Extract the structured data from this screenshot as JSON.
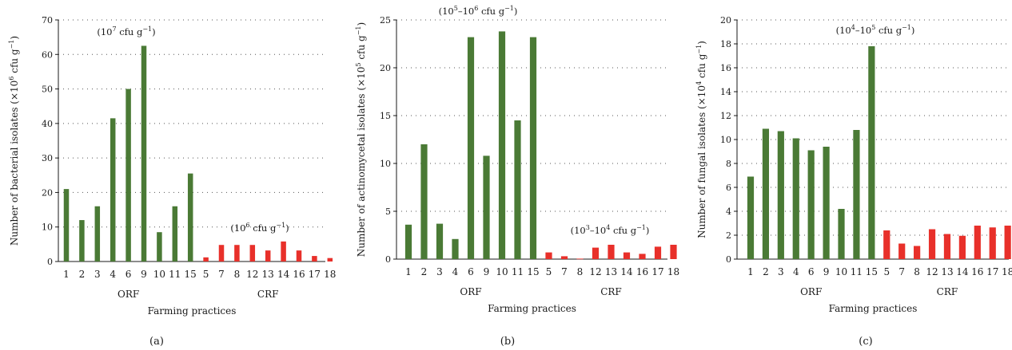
{
  "colors": {
    "orf": "#4a7a35",
    "crf": "#e8302a",
    "grid": "#555555",
    "axis": "#1a1a1a"
  },
  "chart_data": [
    {
      "type": "bar",
      "panel_label": "(a)",
      "xlabel": "Farming practices",
      "ylabel": "Number of bacterial isolates (×10⁶ cfu g⁻¹)",
      "ylabel_parts": {
        "pre": "Number of bacterial isolates (×10",
        "sup1": "6",
        "mid": " cfu g",
        "sup2": "−1",
        "post": ")"
      },
      "ylim": [
        0,
        70
      ],
      "yticks": [
        0,
        10,
        20,
        30,
        40,
        50,
        60,
        70
      ],
      "grid": "horizontal dotted",
      "groups": [
        {
          "name": "ORF",
          "color_key": "orf",
          "categories": [
            "1",
            "2",
            "3",
            "4",
            "6",
            "9",
            "10",
            "11",
            "15"
          ],
          "values": [
            21,
            12,
            16,
            41.5,
            50,
            62.5,
            8.5,
            16,
            25.5
          ]
        },
        {
          "name": "CRF",
          "color_key": "crf",
          "categories": [
            "5",
            "7",
            "8",
            "12",
            "13",
            "14",
            "16",
            "17",
            "18"
          ],
          "values": [
            1.2,
            4.8,
            4.8,
            4.8,
            3.2,
            5.8,
            3.2,
            1.6,
            1.0
          ]
        }
      ],
      "annotations": [
        {
          "group": "ORF",
          "pre": "(10",
          "sup1": "7",
          "mid": " cfu g",
          "sup2": "−1",
          "post": ")"
        },
        {
          "group": "CRF",
          "pre": "(10",
          "sup1": "6",
          "mid": " cfu g",
          "sup2": "−1",
          "post": ")"
        }
      ]
    },
    {
      "type": "bar",
      "panel_label": "(b)",
      "xlabel": "Farming practices",
      "ylabel": "Number of actinomycetal isolates (×10⁵ cfu g⁻¹)",
      "ylabel_parts": {
        "pre": "Number of actinomycetal isolates (×10",
        "sup1": "5",
        "mid": " cfu g",
        "sup2": "−1",
        "post": ")"
      },
      "ylim": [
        0,
        25
      ],
      "yticks": [
        0,
        5,
        10,
        15,
        20,
        25
      ],
      "grid": "horizontal dotted",
      "groups": [
        {
          "name": "ORF",
          "color_key": "orf",
          "categories": [
            "1",
            "2",
            "3",
            "4",
            "6",
            "9",
            "10",
            "11",
            "15"
          ],
          "values": [
            3.6,
            12,
            3.7,
            2.1,
            23.2,
            10.8,
            23.8,
            14.5,
            23.2
          ]
        },
        {
          "name": "CRF",
          "color_key": "crf",
          "categories": [
            "5",
            "7",
            "8",
            "12",
            "13",
            "14",
            "16",
            "17",
            "18"
          ],
          "values": [
            0.7,
            0.3,
            0.05,
            1.2,
            1.5,
            0.7,
            0.55,
            1.3,
            1.5
          ]
        }
      ],
      "annotations": [
        {
          "group": "ORF",
          "pre": "(10",
          "sup1": "5",
          "mid": "–10",
          "sup2": "6",
          "post": " cfu g",
          "sup3": "−1",
          "tail": ")"
        },
        {
          "group": "CRF",
          "pre": "(10",
          "sup1": "3",
          "mid": "–10",
          "sup2": "4",
          "post": " cfu g",
          "sup3": "−1",
          "tail": ")"
        }
      ]
    },
    {
      "type": "bar",
      "panel_label": "(c)",
      "xlabel": "Farming practices",
      "ylabel": "Number of fungal isolates (×10⁴ cfu g⁻¹)",
      "ylabel_parts": {
        "pre": "Number of fungal isolates (×10",
        "sup1": "4",
        "mid": " cfu g",
        "sup2": "−1",
        "post": ")"
      },
      "ylim": [
        0,
        20
      ],
      "yticks": [
        0,
        2,
        4,
        6,
        8,
        10,
        12,
        14,
        16,
        18,
        20
      ],
      "grid": "horizontal dotted",
      "groups": [
        {
          "name": "ORF",
          "color_key": "orf",
          "categories": [
            "1",
            "2",
            "3",
            "4",
            "6",
            "9",
            "10",
            "11",
            "15"
          ],
          "values": [
            6.9,
            10.9,
            10.7,
            10.1,
            9.1,
            9.4,
            4.2,
            10.8,
            17.8
          ]
        },
        {
          "name": "CRF",
          "color_key": "crf",
          "categories": [
            "5",
            "7",
            "8",
            "12",
            "13",
            "14",
            "16",
            "17",
            "18"
          ],
          "values": [
            2.4,
            1.3,
            1.1,
            2.5,
            2.1,
            1.95,
            2.8,
            2.65,
            2.8
          ]
        }
      ],
      "annotations": [
        {
          "group": "ORF",
          "pre": "(10",
          "sup1": "4",
          "mid": "–10",
          "sup2": "5",
          "post": " cfu g",
          "sup3": "−1",
          "tail": ")"
        }
      ]
    }
  ]
}
